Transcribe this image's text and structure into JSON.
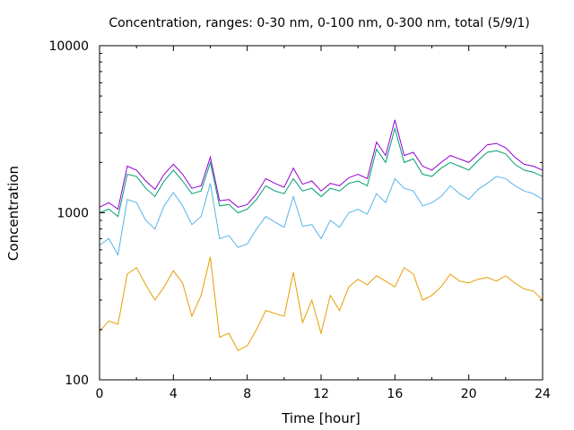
{
  "chart_data": {
    "type": "line",
    "title": "Concentration, ranges: 0-30 nm, 0-100 nm, 0-300 nm, total (5/9/1)",
    "xlabel": "Time [hour]",
    "ylabel": "Concentration",
    "xlim": [
      0,
      24
    ],
    "ylim": [
      100,
      10000
    ],
    "yscale": "log",
    "grid": false,
    "legend": "none",
    "x_ticks": [
      0,
      4,
      8,
      12,
      16,
      20,
      24
    ],
    "y_ticks": [
      100,
      1000,
      10000
    ],
    "x_tick_labels": [
      "0",
      "4",
      "8",
      "12",
      "16",
      "20",
      "24"
    ],
    "y_tick_labels": [
      "100",
      "1000",
      "10000"
    ],
    "series": [
      {
        "color": "#e69f00",
        "x": [
          0,
          0.5,
          1,
          1.5,
          2,
          2.5,
          3,
          3.5,
          4,
          4.5,
          5,
          5.5,
          6,
          6.5,
          7,
          7.5,
          8,
          8.5,
          9,
          9.5,
          10,
          10.5,
          11,
          11.5,
          12,
          12.5,
          13,
          13.5,
          14,
          14.5,
          15,
          15.5,
          16,
          16.5,
          17,
          17.5,
          18,
          18.5,
          19,
          19.5,
          20,
          20.5,
          21,
          21.5,
          22,
          22.5,
          23,
          23.5,
          24
        ],
        "values": [
          195,
          225,
          215,
          430,
          470,
          370,
          300,
          360,
          450,
          380,
          240,
          320,
          545,
          180,
          190,
          150,
          160,
          200,
          260,
          250,
          240,
          440,
          220,
          300,
          190,
          320,
          260,
          360,
          400,
          370,
          420,
          390,
          360,
          470,
          430,
          300,
          320,
          360,
          430,
          390,
          380,
          400,
          410,
          390,
          420,
          380,
          350,
          340,
          300
        ]
      },
      {
        "color": "#56b4e9",
        "x": [
          0,
          0.5,
          1,
          1.5,
          2,
          2.5,
          3,
          3.5,
          4,
          4.5,
          5,
          5.5,
          6,
          6.5,
          7,
          7.5,
          8,
          8.5,
          9,
          9.5,
          10,
          10.5,
          11,
          11.5,
          12,
          12.5,
          13,
          13.5,
          14,
          14.5,
          15,
          15.5,
          16,
          16.5,
          17,
          17.5,
          18,
          18.5,
          19,
          19.5,
          20,
          20.5,
          21,
          21.5,
          22,
          22.5,
          23,
          23.5,
          24
        ],
        "values": [
          640,
          700,
          560,
          1200,
          1150,
          900,
          800,
          1100,
          1320,
          1100,
          850,
          950,
          1500,
          700,
          730,
          620,
          650,
          800,
          950,
          880,
          820,
          1250,
          830,
          850,
          700,
          900,
          820,
          1000,
          1050,
          980,
          1300,
          1150,
          1600,
          1400,
          1350,
          1100,
          1150,
          1250,
          1450,
          1300,
          1200,
          1380,
          1500,
          1650,
          1600,
          1450,
          1350,
          1300,
          1200
        ]
      },
      {
        "color": "#009e73",
        "x": [
          0,
          0.5,
          1,
          1.5,
          2,
          2.5,
          3,
          3.5,
          4,
          4.5,
          5,
          5.5,
          6,
          6.5,
          7,
          7.5,
          8,
          8.5,
          9,
          9.5,
          10,
          10.5,
          11,
          11.5,
          12,
          12.5,
          13,
          13.5,
          14,
          14.5,
          15,
          15.5,
          16,
          16.5,
          17,
          17.5,
          18,
          18.5,
          19,
          19.5,
          20,
          20.5,
          21,
          21.5,
          22,
          22.5,
          23,
          23.5,
          24
        ],
        "values": [
          1000,
          1050,
          950,
          1700,
          1650,
          1400,
          1250,
          1550,
          1800,
          1550,
          1300,
          1350,
          2000,
          1100,
          1120,
          1000,
          1050,
          1200,
          1450,
          1350,
          1300,
          1600,
          1350,
          1400,
          1250,
          1400,
          1350,
          1500,
          1550,
          1450,
          2400,
          2000,
          3200,
          2000,
          2100,
          1700,
          1650,
          1850,
          2000,
          1900,
          1800,
          2050,
          2300,
          2350,
          2250,
          1950,
          1800,
          1750,
          1650
        ]
      },
      {
        "color": "#9400d3",
        "x": [
          0,
          0.5,
          1,
          1.5,
          2,
          2.5,
          3,
          3.5,
          4,
          4.5,
          5,
          5.5,
          6,
          6.5,
          7,
          7.5,
          8,
          8.5,
          9,
          9.5,
          10,
          10.5,
          11,
          11.5,
          12,
          12.5,
          13,
          13.5,
          14,
          14.5,
          15,
          15.5,
          16,
          16.5,
          17,
          17.5,
          18,
          18.5,
          19,
          19.5,
          20,
          20.5,
          21,
          21.5,
          22,
          22.5,
          23,
          23.5,
          24
        ],
        "values": [
          1080,
          1150,
          1050,
          1900,
          1800,
          1550,
          1380,
          1700,
          1950,
          1700,
          1400,
          1450,
          2150,
          1180,
          1200,
          1080,
          1120,
          1300,
          1600,
          1500,
          1420,
          1850,
          1480,
          1550,
          1350,
          1500,
          1450,
          1620,
          1700,
          1600,
          2650,
          2200,
          3600,
          2200,
          2300,
          1900,
          1800,
          2000,
          2200,
          2100,
          2000,
          2250,
          2550,
          2600,
          2450,
          2150,
          1950,
          1900,
          1800
        ]
      }
    ]
  }
}
